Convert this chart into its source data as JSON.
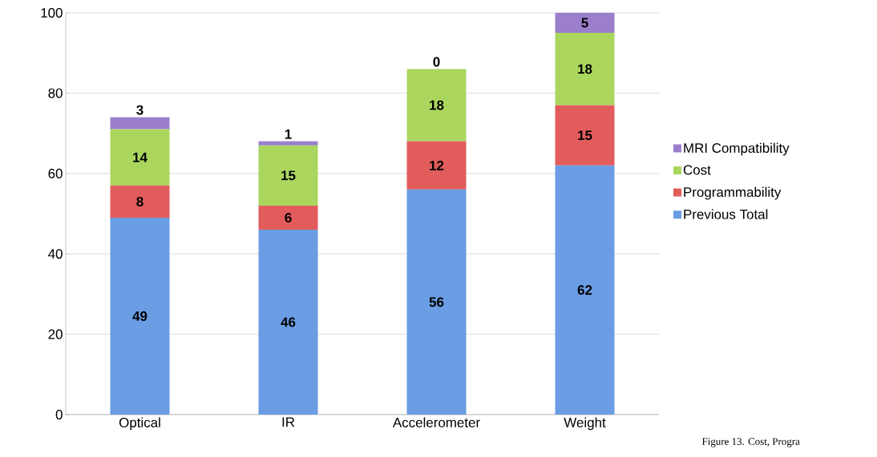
{
  "chart_data": {
    "type": "bar",
    "stacked": true,
    "categories": [
      "Optical",
      "IR",
      "Accelerometer",
      "Weight"
    ],
    "series": [
      {
        "name": "Previous Total",
        "color": "#6a9de4",
        "values": [
          49,
          46,
          56,
          62
        ]
      },
      {
        "name": "Programmability",
        "color": "#e25c5c",
        "values": [
          8,
          6,
          12,
          15
        ]
      },
      {
        "name": "Cost",
        "color": "#aad65e",
        "values": [
          14,
          15,
          18,
          18
        ]
      },
      {
        "name": "MRI Compatibility",
        "color": "#9b7fcc",
        "values": [
          3,
          1,
          0,
          5
        ]
      }
    ],
    "ylim": [
      0,
      100
    ],
    "yticks": [
      0,
      20,
      40,
      60,
      80,
      100
    ],
    "grid": "y",
    "legend": "right",
    "data_labels": true,
    "annotations": [
      "Figure 13. Cost, Progra"
    ]
  }
}
